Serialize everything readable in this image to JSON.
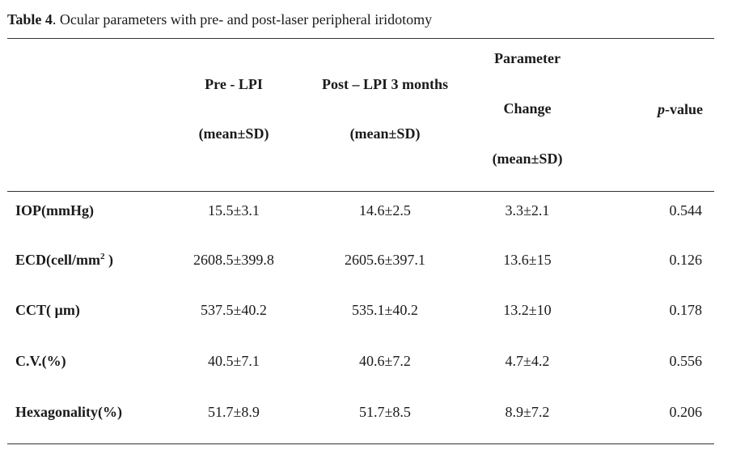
{
  "caption": {
    "label": "Table 4",
    "text": ". Ocular parameters with pre- and post-laser peripheral iridotomy"
  },
  "headers": {
    "pre_line1": "Pre - LPI",
    "pre_line2": "(mean±SD)",
    "post_line1": "Post – LPI 3 months",
    "post_line2": "(mean±SD)",
    "change_line1": "Parameter",
    "change_line2": "Change",
    "change_line3": "(mean±SD)",
    "pvalue_italic": "p",
    "pvalue_rest": "-value"
  },
  "rows": [
    {
      "label": "IOP(mmHg)",
      "label_sup": "",
      "label_suffix": "",
      "pre": "15.5±3.1",
      "post": "14.6±2.5",
      "change": "3.3±2.1",
      "p": "0.544"
    },
    {
      "label": "ECD(cell/mm",
      "label_sup": "2",
      "label_suffix": " )",
      "pre": "2608.5±399.8",
      "post": "2605.6±397.1",
      "change": "13.6±15",
      "p": "0.126"
    },
    {
      "label": "CCT( µm)",
      "label_sup": "",
      "label_suffix": "",
      "pre": "537.5±40.2",
      "post": "535.1±40.2",
      "change": "13.2±10",
      "p": "0.178"
    },
    {
      "label": "C.V.(%)",
      "label_sup": "",
      "label_suffix": "",
      "pre": "40.5±7.1",
      "post": "40.6±7.2",
      "change": "4.7±4.2",
      "p": "0.556"
    },
    {
      "label": "Hexagonality(%)",
      "label_sup": "",
      "label_suffix": "",
      "pre": "51.7±8.9",
      "post": "51.7±8.5",
      "change": "8.9±7.2",
      "p": "0.206"
    }
  ]
}
